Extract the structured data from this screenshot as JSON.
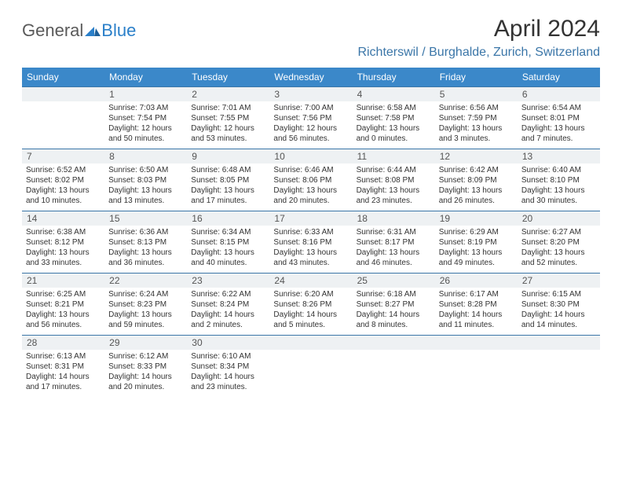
{
  "logo": {
    "part1": "General",
    "part2": "Blue"
  },
  "title": "April 2024",
  "location": "Richterswil / Burghalde, Zurich, Switzerland",
  "daysOfWeek": [
    "Sunday",
    "Monday",
    "Tuesday",
    "Wednesday",
    "Thursday",
    "Friday",
    "Saturday"
  ],
  "colors": {
    "headerBar": "#3b88c9",
    "dayNumBg": "#eef1f3",
    "divider": "#3b76a8",
    "locationText": "#3b76a8",
    "logoBlue": "#2a7fc9",
    "bodyText": "#333333"
  },
  "weeks": [
    [
      {
        "num": "",
        "sunrise": "",
        "sunset": "",
        "daylight": ""
      },
      {
        "num": "1",
        "sunrise": "Sunrise: 7:03 AM",
        "sunset": "Sunset: 7:54 PM",
        "daylight": "Daylight: 12 hours and 50 minutes."
      },
      {
        "num": "2",
        "sunrise": "Sunrise: 7:01 AM",
        "sunset": "Sunset: 7:55 PM",
        "daylight": "Daylight: 12 hours and 53 minutes."
      },
      {
        "num": "3",
        "sunrise": "Sunrise: 7:00 AM",
        "sunset": "Sunset: 7:56 PM",
        "daylight": "Daylight: 12 hours and 56 minutes."
      },
      {
        "num": "4",
        "sunrise": "Sunrise: 6:58 AM",
        "sunset": "Sunset: 7:58 PM",
        "daylight": "Daylight: 13 hours and 0 minutes."
      },
      {
        "num": "5",
        "sunrise": "Sunrise: 6:56 AM",
        "sunset": "Sunset: 7:59 PM",
        "daylight": "Daylight: 13 hours and 3 minutes."
      },
      {
        "num": "6",
        "sunrise": "Sunrise: 6:54 AM",
        "sunset": "Sunset: 8:01 PM",
        "daylight": "Daylight: 13 hours and 7 minutes."
      }
    ],
    [
      {
        "num": "7",
        "sunrise": "Sunrise: 6:52 AM",
        "sunset": "Sunset: 8:02 PM",
        "daylight": "Daylight: 13 hours and 10 minutes."
      },
      {
        "num": "8",
        "sunrise": "Sunrise: 6:50 AM",
        "sunset": "Sunset: 8:03 PM",
        "daylight": "Daylight: 13 hours and 13 minutes."
      },
      {
        "num": "9",
        "sunrise": "Sunrise: 6:48 AM",
        "sunset": "Sunset: 8:05 PM",
        "daylight": "Daylight: 13 hours and 17 minutes."
      },
      {
        "num": "10",
        "sunrise": "Sunrise: 6:46 AM",
        "sunset": "Sunset: 8:06 PM",
        "daylight": "Daylight: 13 hours and 20 minutes."
      },
      {
        "num": "11",
        "sunrise": "Sunrise: 6:44 AM",
        "sunset": "Sunset: 8:08 PM",
        "daylight": "Daylight: 13 hours and 23 minutes."
      },
      {
        "num": "12",
        "sunrise": "Sunrise: 6:42 AM",
        "sunset": "Sunset: 8:09 PM",
        "daylight": "Daylight: 13 hours and 26 minutes."
      },
      {
        "num": "13",
        "sunrise": "Sunrise: 6:40 AM",
        "sunset": "Sunset: 8:10 PM",
        "daylight": "Daylight: 13 hours and 30 minutes."
      }
    ],
    [
      {
        "num": "14",
        "sunrise": "Sunrise: 6:38 AM",
        "sunset": "Sunset: 8:12 PM",
        "daylight": "Daylight: 13 hours and 33 minutes."
      },
      {
        "num": "15",
        "sunrise": "Sunrise: 6:36 AM",
        "sunset": "Sunset: 8:13 PM",
        "daylight": "Daylight: 13 hours and 36 minutes."
      },
      {
        "num": "16",
        "sunrise": "Sunrise: 6:34 AM",
        "sunset": "Sunset: 8:15 PM",
        "daylight": "Daylight: 13 hours and 40 minutes."
      },
      {
        "num": "17",
        "sunrise": "Sunrise: 6:33 AM",
        "sunset": "Sunset: 8:16 PM",
        "daylight": "Daylight: 13 hours and 43 minutes."
      },
      {
        "num": "18",
        "sunrise": "Sunrise: 6:31 AM",
        "sunset": "Sunset: 8:17 PM",
        "daylight": "Daylight: 13 hours and 46 minutes."
      },
      {
        "num": "19",
        "sunrise": "Sunrise: 6:29 AM",
        "sunset": "Sunset: 8:19 PM",
        "daylight": "Daylight: 13 hours and 49 minutes."
      },
      {
        "num": "20",
        "sunrise": "Sunrise: 6:27 AM",
        "sunset": "Sunset: 8:20 PM",
        "daylight": "Daylight: 13 hours and 52 minutes."
      }
    ],
    [
      {
        "num": "21",
        "sunrise": "Sunrise: 6:25 AM",
        "sunset": "Sunset: 8:21 PM",
        "daylight": "Daylight: 13 hours and 56 minutes."
      },
      {
        "num": "22",
        "sunrise": "Sunrise: 6:24 AM",
        "sunset": "Sunset: 8:23 PM",
        "daylight": "Daylight: 13 hours and 59 minutes."
      },
      {
        "num": "23",
        "sunrise": "Sunrise: 6:22 AM",
        "sunset": "Sunset: 8:24 PM",
        "daylight": "Daylight: 14 hours and 2 minutes."
      },
      {
        "num": "24",
        "sunrise": "Sunrise: 6:20 AM",
        "sunset": "Sunset: 8:26 PM",
        "daylight": "Daylight: 14 hours and 5 minutes."
      },
      {
        "num": "25",
        "sunrise": "Sunrise: 6:18 AM",
        "sunset": "Sunset: 8:27 PM",
        "daylight": "Daylight: 14 hours and 8 minutes."
      },
      {
        "num": "26",
        "sunrise": "Sunrise: 6:17 AM",
        "sunset": "Sunset: 8:28 PM",
        "daylight": "Daylight: 14 hours and 11 minutes."
      },
      {
        "num": "27",
        "sunrise": "Sunrise: 6:15 AM",
        "sunset": "Sunset: 8:30 PM",
        "daylight": "Daylight: 14 hours and 14 minutes."
      }
    ],
    [
      {
        "num": "28",
        "sunrise": "Sunrise: 6:13 AM",
        "sunset": "Sunset: 8:31 PM",
        "daylight": "Daylight: 14 hours and 17 minutes."
      },
      {
        "num": "29",
        "sunrise": "Sunrise: 6:12 AM",
        "sunset": "Sunset: 8:33 PM",
        "daylight": "Daylight: 14 hours and 20 minutes."
      },
      {
        "num": "30",
        "sunrise": "Sunrise: 6:10 AM",
        "sunset": "Sunset: 8:34 PM",
        "daylight": "Daylight: 14 hours and 23 minutes."
      },
      {
        "num": "",
        "sunrise": "",
        "sunset": "",
        "daylight": ""
      },
      {
        "num": "",
        "sunrise": "",
        "sunset": "",
        "daylight": ""
      },
      {
        "num": "",
        "sunrise": "",
        "sunset": "",
        "daylight": ""
      },
      {
        "num": "",
        "sunrise": "",
        "sunset": "",
        "daylight": ""
      }
    ]
  ]
}
